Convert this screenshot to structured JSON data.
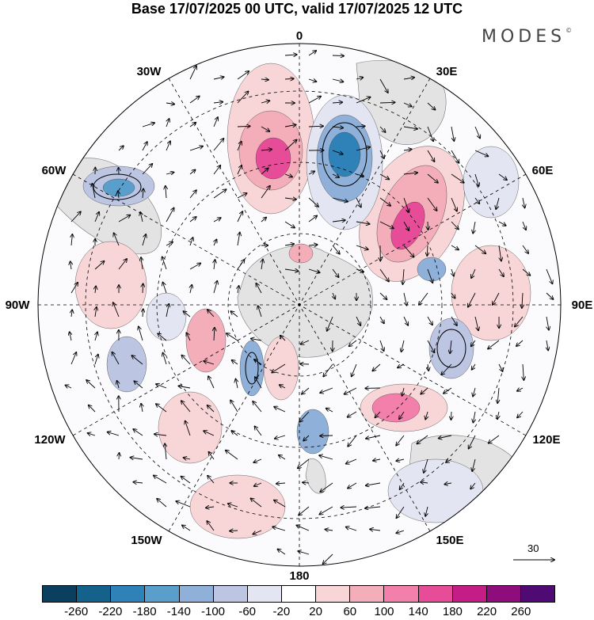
{
  "title": "Base 17/07/2025 00 UTC, valid 17/07/2025 12 UTC",
  "brand": "MODES",
  "brand_mark": "©",
  "map": {
    "projection": "south-polar-stereographic",
    "longitude_labels": {
      "top": "0",
      "top_right": "30E",
      "right_upper": "60E",
      "right": "90E",
      "right_lower": "120E",
      "bottom_right": "150E",
      "bottom": "180",
      "bottom_left": "150W",
      "left_lower": "120W",
      "left": "90W",
      "left_upper": "60W",
      "top_left": "30W"
    },
    "reference_vector": "30"
  },
  "colorbar": {
    "colors": [
      "#0b3f5f",
      "#14628c",
      "#2e82b8",
      "#5a9fcc",
      "#8fb0d8",
      "#bcc5e2",
      "#e4e5f2",
      "#ffffff",
      "#f8d5d6",
      "#f4aeb9",
      "#f280aa",
      "#e74c99",
      "#c41d85",
      "#8e0c7c",
      "#4f0a73"
    ],
    "ticks": [
      "-260",
      "-220",
      "-180",
      "-140",
      "-100",
      "-60",
      "-20",
      "20",
      "60",
      "100",
      "140",
      "180",
      "220",
      "260"
    ]
  }
}
